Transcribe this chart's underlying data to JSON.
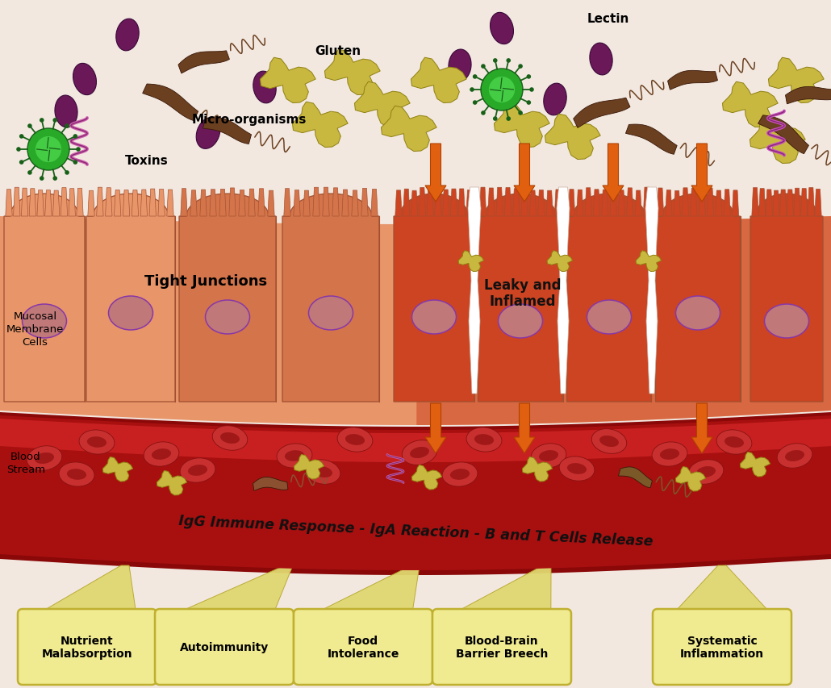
{
  "bg_color": "#f2e8e0",
  "title": "IgG Immune Response - IgA Reaction - B and T Cells Release",
  "labels": {
    "tight_junctions": "Tight Junctions",
    "leaky_inflamed": "Leaky and\nInflamed",
    "mucosal_membrane": "Mucosal\nMembrane\nCells",
    "blood_stream": "Blood\nStream",
    "toxins": "Toxins",
    "micro_organisms": "Micro-organisms",
    "gluten": "Gluten",
    "lectin": "Lectin"
  },
  "cell_color_light": "#e8956a",
  "cell_color_mid": "#d4744a",
  "cell_color_dark": "#c05838",
  "cell_color_inflamed": "#cc4422",
  "cell_color_deeper": "#b84028",
  "nucleus_fill": "#c07878",
  "nucleus_outline": "#8838a8",
  "blood_dark": "#8a0808",
  "blood_mid": "#a81010",
  "blood_bright": "#c82020",
  "rbc_outer": "#c83030",
  "rbc_inner": "#a01818",
  "arrow_fill": "#e06010",
  "arrow_edge": "#b04000",
  "outcome_box_fill": "#f0ea90",
  "outcome_box_edge": "#c0b030",
  "connector_fill": "#e0d870",
  "connector_edge": "#b8a830",
  "virus_body": "#28aa28",
  "virus_inner": "#44cc44",
  "virus_spike": "#186018",
  "bacteria_body": "#6b4020",
  "bacteria_dark": "#3a1808",
  "spiral_color": "#c050a0",
  "spiral_dark": "#882870",
  "antigen_fill": "#6a1858",
  "antigen_edge": "#3a0838",
  "gluten_fill": "#c8b840",
  "gluten_edge": "#908010"
}
